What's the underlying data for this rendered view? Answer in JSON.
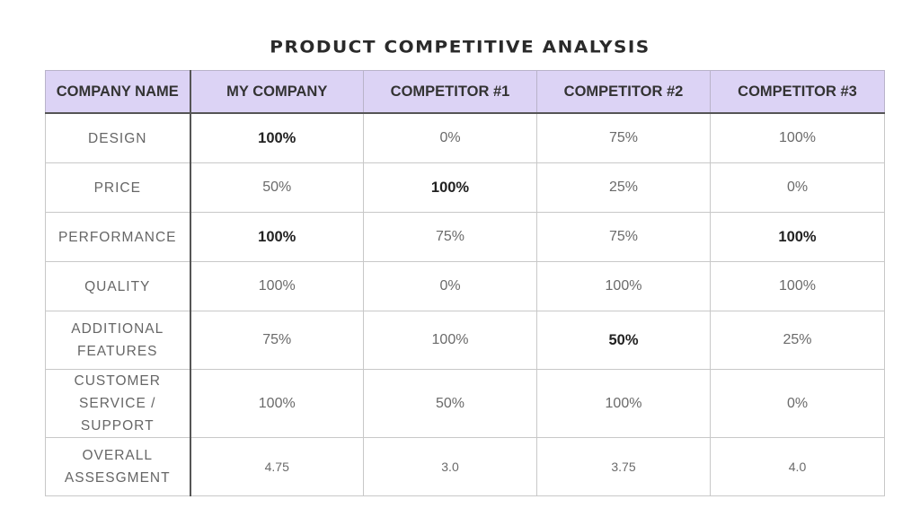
{
  "title": "PRODUCT COMPETITIVE ANALYSIS",
  "colors": {
    "header_bg": "#dcd3f5",
    "accent_line": "#555555",
    "grid": "#c8c8c8"
  },
  "table": {
    "headers": [
      "COMPANY NAME",
      "MY COMPANY",
      "COMPETITOR #1",
      "COMPETITOR #2",
      "COMPETITOR #3"
    ],
    "rows": [
      {
        "label": "DESIGN",
        "values": [
          "100%",
          "0%",
          "75%",
          "100%"
        ],
        "bold": [
          true,
          false,
          false,
          false
        ]
      },
      {
        "label": "PRICE",
        "values": [
          "50%",
          "100%",
          "25%",
          "0%"
        ],
        "bold": [
          false,
          true,
          false,
          false
        ]
      },
      {
        "label": "PERFORMANCE",
        "values": [
          "100%",
          "75%",
          "75%",
          "100%"
        ],
        "bold": [
          true,
          false,
          false,
          true
        ]
      },
      {
        "label": "QUALITY",
        "values": [
          "100%",
          "0%",
          "100%",
          "100%"
        ],
        "bold": [
          false,
          false,
          false,
          false
        ]
      },
      {
        "label": "ADDITIONAL FEATURES",
        "values": [
          "75%",
          "100%",
          "50%",
          "25%"
        ],
        "bold": [
          false,
          false,
          true,
          false
        ]
      },
      {
        "label": "CUSTOMER SERVICE / SUPPORT",
        "values": [
          "100%",
          "50%",
          "100%",
          "0%"
        ],
        "bold": [
          false,
          false,
          false,
          false
        ]
      },
      {
        "label": "OVERALL ASSESGMENT",
        "values": [
          "4.75",
          "3.0",
          "3.75",
          "4.0"
        ],
        "bold": [
          false,
          false,
          false,
          false
        ]
      }
    ]
  }
}
